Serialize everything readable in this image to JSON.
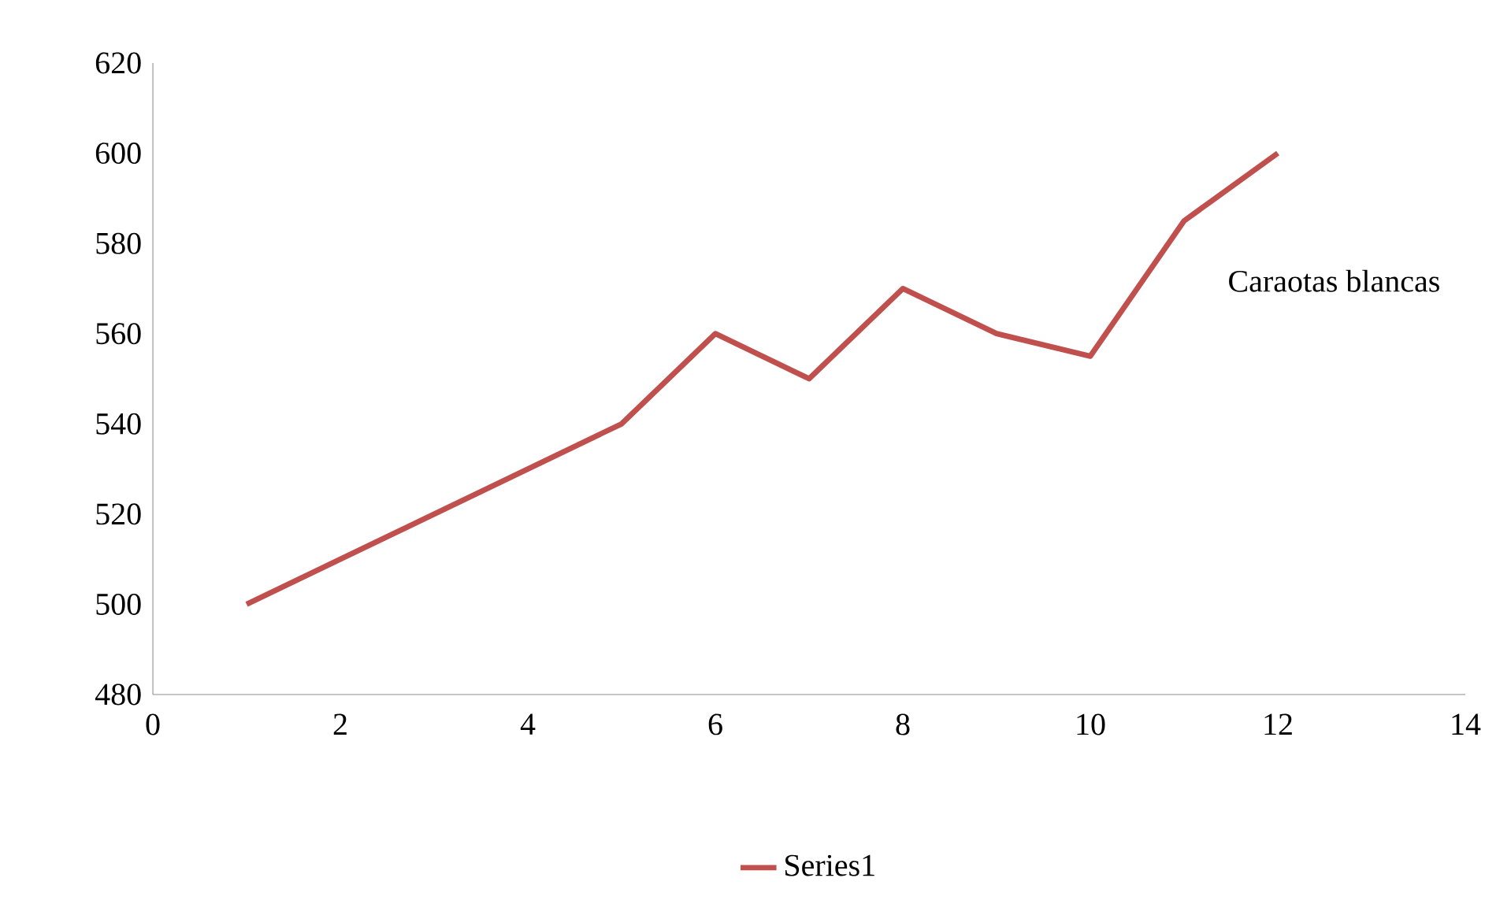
{
  "chart_data": {
    "type": "line",
    "x": [
      1,
      2,
      3,
      4,
      5,
      6,
      7,
      8,
      9,
      10,
      11,
      12
    ],
    "series": [
      {
        "name": "Series1",
        "color": "#c0504d",
        "values": [
          500,
          510,
          520,
          530,
          540,
          560,
          550,
          570,
          560,
          555,
          585,
          600
        ]
      }
    ],
    "xlim": [
      0,
      14
    ],
    "xticks": [
      0,
      2,
      4,
      6,
      8,
      10,
      12,
      14
    ],
    "ylim": [
      480,
      620
    ],
    "yticks": [
      480,
      500,
      520,
      540,
      560,
      580,
      600,
      620
    ],
    "annotations": [
      "Caraotas blancas"
    ],
    "legend": "bottom",
    "grid": false,
    "marker": "none",
    "line_style": "solid"
  }
}
